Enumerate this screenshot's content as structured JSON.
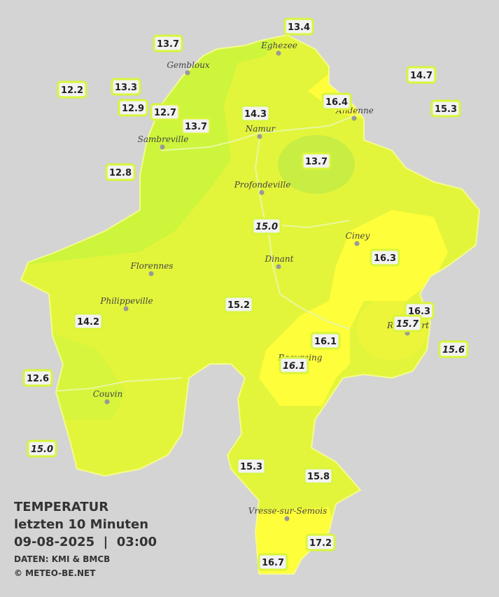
{
  "header": {
    "title": "TEMPERATUR",
    "subtitle": "letzten 10 Minuten",
    "datetime": "09-08-2025  |  03:00",
    "source": "DATEN: KMI & BMCB",
    "copyright": "© METEO-BE.NET"
  },
  "cities": [
    "Eghezee",
    "Gembloux",
    "Andenne",
    "Namur",
    "Sambreville",
    "Profondeville",
    "Ciney",
    "Dinant",
    "Florennes",
    "Philippeville",
    "Beauraing",
    "Rochefort",
    "Couvin",
    "Vresse-sur-Semois"
  ],
  "stations": [
    {
      "label": "13.4",
      "italic": false
    },
    {
      "label": "13.7",
      "italic": false
    },
    {
      "label": "14.7",
      "italic": false
    },
    {
      "label": "12.2",
      "italic": false
    },
    {
      "label": "13.3",
      "italic": false
    },
    {
      "label": "16.4",
      "italic": false
    },
    {
      "label": "15.3",
      "italic": false
    },
    {
      "label": "12.9",
      "italic": false
    },
    {
      "label": "12.7",
      "italic": false
    },
    {
      "label": "14.3",
      "italic": false
    },
    {
      "label": "13.7",
      "italic": false
    },
    {
      "label": "13.7",
      "italic": false
    },
    {
      "label": "12.8",
      "italic": false
    },
    {
      "label": "15.0",
      "italic": true
    },
    {
      "label": "16.3",
      "italic": false
    },
    {
      "label": "15.2",
      "italic": false
    },
    {
      "label": "16.3",
      "italic": false
    },
    {
      "label": "15.7",
      "italic": true
    },
    {
      "label": "14.2",
      "italic": false
    },
    {
      "label": "16.1",
      "italic": false
    },
    {
      "label": "15.6",
      "italic": true
    },
    {
      "label": "16.1",
      "italic": true
    },
    {
      "label": "12.6",
      "italic": false
    },
    {
      "label": "15.0",
      "italic": true
    },
    {
      "label": "15.3",
      "italic": false
    },
    {
      "label": "15.8",
      "italic": false
    },
    {
      "label": "17.2",
      "italic": false
    },
    {
      "label": "16.7",
      "italic": false
    }
  ]
}
